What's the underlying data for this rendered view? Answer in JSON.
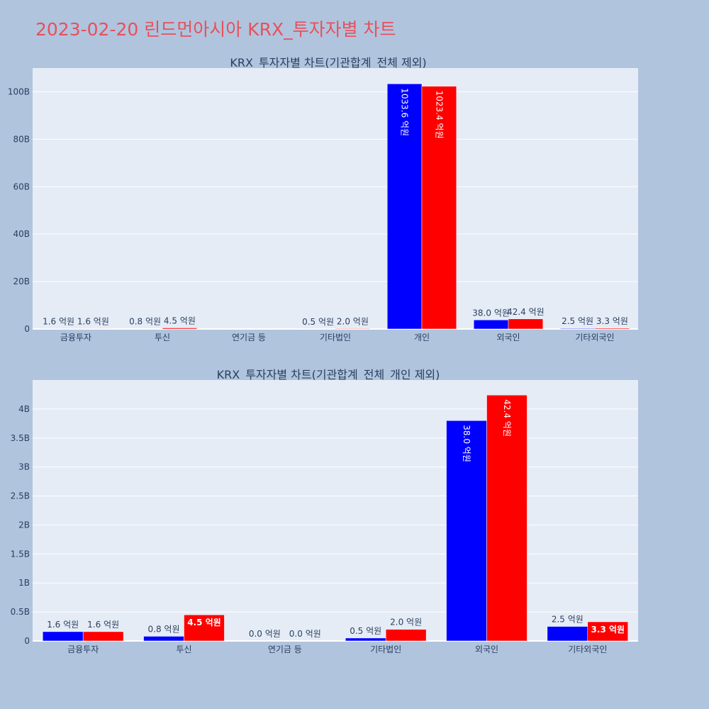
{
  "page_title": "2023-02-20 린드먼아시아 KRX_투자자별 차트",
  "colors": {
    "series1": "#0000ff",
    "series2": "#ff0000",
    "plot_bg": "#e5ecf6",
    "paper_bg": "#b0c4de",
    "title": "#e8505b"
  },
  "chart_data": [
    {
      "type": "bar",
      "title": "KRX_투자자별 차트(기관합계_전체 제외)",
      "categories": [
        "금융투자",
        "투신",
        "연기금 등",
        "기타법인",
        "개인",
        "외국인",
        "기타외국인"
      ],
      "series": [
        {
          "values": [
            0.16,
            0.08,
            0.0,
            0.05,
            103.36,
            3.8,
            0.25
          ],
          "labels": [
            "1.6 억원",
            "0.8 억원",
            "",
            "0.5 억원",
            "1033.6 억원",
            "38.0 억원",
            "2.5 억원"
          ]
        },
        {
          "values": [
            0.16,
            0.45,
            0.0,
            0.2,
            102.34,
            4.24,
            0.33
          ],
          "labels": [
            "1.6 억원",
            "4.5 억원",
            "",
            "2.0 억원",
            "1023.4 억원",
            "42.4 억원",
            "3.3 억원"
          ]
        }
      ],
      "yticks": [
        0,
        20,
        40,
        60,
        80,
        100
      ],
      "yticklabels": [
        "0",
        "20B",
        "40B",
        "60B",
        "80B",
        "100B"
      ],
      "ylim": [
        0,
        110
      ],
      "grid": true,
      "legend": "none"
    },
    {
      "type": "bar",
      "title": "KRX_투자자별 차트(기관합계_전체_개인 제외)",
      "categories": [
        "금융투자",
        "투신",
        "연기금 등",
        "기타법인",
        "외국인",
        "기타외국인"
      ],
      "series": [
        {
          "values": [
            0.16,
            0.08,
            0.0,
            0.05,
            3.8,
            0.25
          ],
          "labels": [
            "1.6 억원",
            "0.8 억원",
            "0.0 억원",
            "0.5 억원",
            "38.0 억원",
            "2.5 억원"
          ]
        },
        {
          "values": [
            0.16,
            0.45,
            0.0,
            0.2,
            4.24,
            0.33
          ],
          "labels": [
            "1.6 억원",
            "4.5 억원",
            "0.0 억원",
            "2.0 억원",
            "42.4 억원",
            "3.3 억원"
          ]
        }
      ],
      "yticks": [
        0,
        0.5,
        1,
        1.5,
        2,
        2.5,
        3,
        3.5,
        4
      ],
      "yticklabels": [
        "0",
        "0.5B",
        "1B",
        "1.5B",
        "2B",
        "2.5B",
        "3B",
        "3.5B",
        "4B"
      ],
      "ylim": [
        0,
        4.5
      ],
      "grid": true,
      "legend": "none"
    }
  ]
}
